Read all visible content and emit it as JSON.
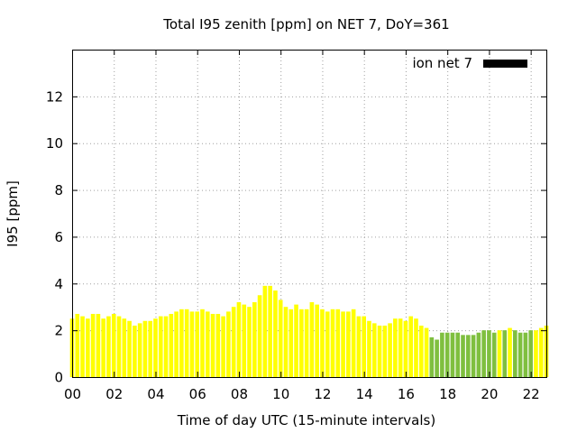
{
  "chart_data": {
    "type": "bar",
    "title": "Total I95 zenith [ppm] on NET 7, DoY=361",
    "xlabel": "Time of day UTC (15-minute intervals)",
    "ylabel": "I95 [ppm]",
    "xlim": [
      0,
      22.75
    ],
    "ylim": [
      0,
      14
    ],
    "x_ticks": [
      "00",
      "02",
      "04",
      "06",
      "08",
      "10",
      "12",
      "14",
      "16",
      "18",
      "20",
      "22"
    ],
    "y_ticks": [
      "0",
      "2",
      "4",
      "6",
      "8",
      "10",
      "12"
    ],
    "grid": true,
    "legend_position": "top-right",
    "bar_interval_hours": 0.25,
    "colors": {
      "yellow": "#ffff00",
      "green": "#7fbf3f",
      "legend_swatch": "#000000"
    },
    "series": [
      {
        "name": "ion net 7"
      }
    ],
    "values": [
      2.5,
      2.7,
      2.6,
      2.5,
      2.7,
      2.7,
      2.5,
      2.6,
      2.7,
      2.6,
      2.5,
      2.4,
      2.2,
      2.3,
      2.4,
      2.4,
      2.5,
      2.6,
      2.6,
      2.7,
      2.8,
      2.9,
      2.9,
      2.8,
      2.8,
      2.9,
      2.8,
      2.7,
      2.7,
      2.6,
      2.8,
      3.0,
      3.2,
      3.1,
      3.0,
      3.2,
      3.5,
      3.9,
      3.9,
      3.7,
      3.3,
      3.0,
      2.9,
      3.1,
      2.9,
      2.9,
      3.2,
      3.1,
      2.9,
      2.8,
      2.9,
      2.9,
      2.8,
      2.8,
      2.9,
      2.6,
      2.6,
      2.4,
      2.3,
      2.2,
      2.2,
      2.3,
      2.5,
      2.5,
      2.4,
      2.6,
      2.5,
      2.2,
      2.1,
      1.7,
      1.6,
      1.9,
      1.9,
      1.9,
      1.9,
      1.8,
      1.8,
      1.8,
      1.9,
      2.0,
      2.0,
      1.9,
      2.0,
      2.0,
      2.1,
      2.0,
      1.9,
      1.9,
      2.0,
      2.0,
      2.1,
      2.2
    ],
    "bar_colors": [
      "yellow",
      "yellow",
      "yellow",
      "yellow",
      "yellow",
      "yellow",
      "yellow",
      "yellow",
      "yellow",
      "yellow",
      "yellow",
      "yellow",
      "yellow",
      "yellow",
      "yellow",
      "yellow",
      "yellow",
      "yellow",
      "yellow",
      "yellow",
      "yellow",
      "yellow",
      "yellow",
      "yellow",
      "yellow",
      "yellow",
      "yellow",
      "yellow",
      "yellow",
      "yellow",
      "yellow",
      "yellow",
      "yellow",
      "yellow",
      "yellow",
      "yellow",
      "yellow",
      "yellow",
      "yellow",
      "yellow",
      "yellow",
      "yellow",
      "yellow",
      "yellow",
      "yellow",
      "yellow",
      "yellow",
      "yellow",
      "yellow",
      "yellow",
      "yellow",
      "yellow",
      "yellow",
      "yellow",
      "yellow",
      "yellow",
      "yellow",
      "yellow",
      "yellow",
      "yellow",
      "yellow",
      "yellow",
      "yellow",
      "yellow",
      "yellow",
      "yellow",
      "yellow",
      "yellow",
      "yellow",
      "green",
      "green",
      "green",
      "green",
      "green",
      "green",
      "green",
      "green",
      "green",
      "green",
      "green",
      "green",
      "green",
      "yellow",
      "green",
      "yellow",
      "green",
      "green",
      "green",
      "green",
      "yellow",
      "yellow",
      "yellow"
    ]
  }
}
